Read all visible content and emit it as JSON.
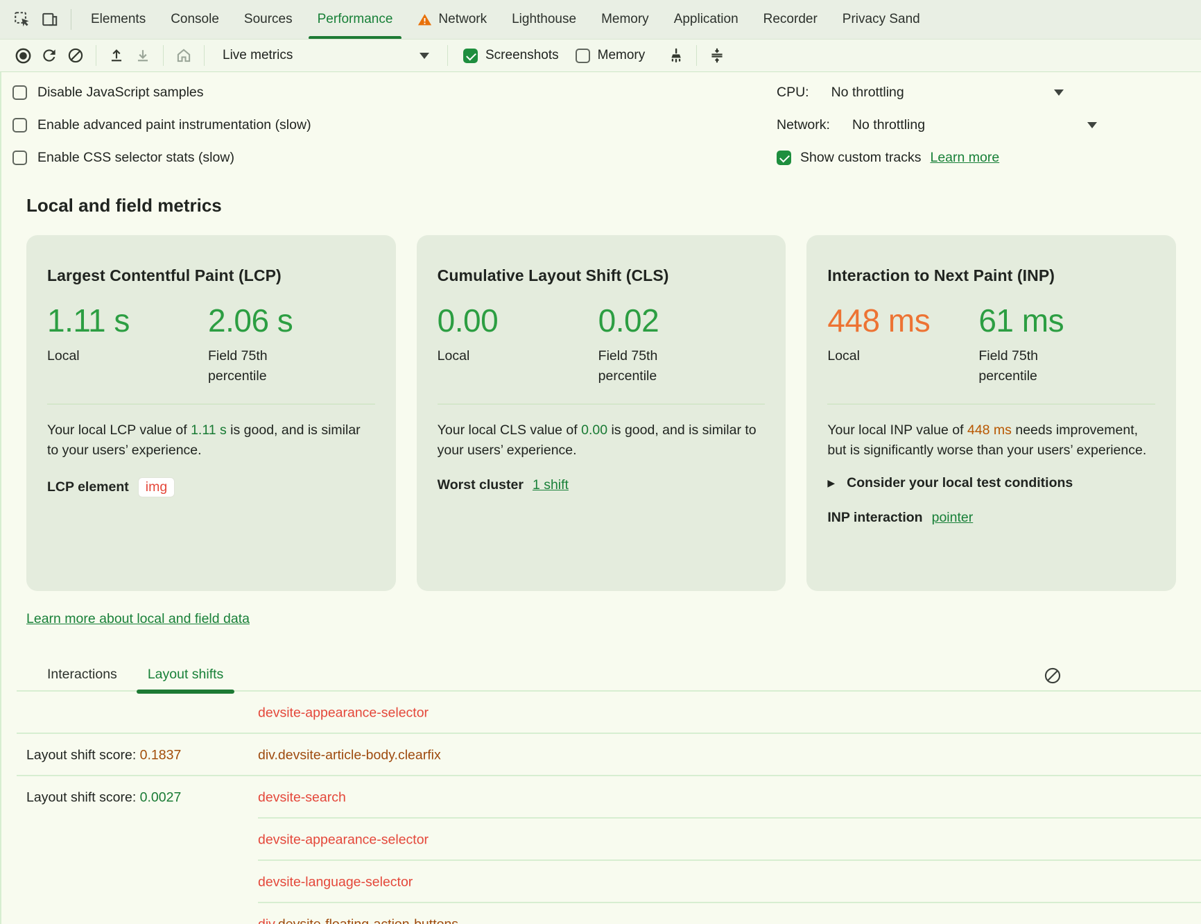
{
  "tabbar": {
    "tabs": [
      {
        "label": "Elements"
      },
      {
        "label": "Console"
      },
      {
        "label": "Sources"
      },
      {
        "label": "Performance",
        "selected": true
      },
      {
        "label": "Network",
        "warning": true
      },
      {
        "label": "Lighthouse"
      },
      {
        "label": "Memory"
      },
      {
        "label": "Application"
      },
      {
        "label": "Recorder"
      },
      {
        "label": "Privacy Sand"
      }
    ],
    "icons": [
      "inspect-icon",
      "device-toolbar-icon",
      "warning-icon"
    ]
  },
  "toolbar": {
    "mode_label": "Live metrics",
    "screenshots_label": "Screenshots",
    "memory_label": "Memory",
    "screenshots_checked": true,
    "memory_checked": false,
    "icons": [
      "record-icon",
      "refresh-icon",
      "clear-icon",
      "upload-icon",
      "download-icon",
      "home-icon",
      "dropdown-arrow-icon",
      "broom-icon",
      "collapse-icon"
    ]
  },
  "settings": {
    "options": [
      "Disable JavaScript samples",
      "Enable advanced paint instrumentation (slow)",
      "Enable CSS selector stats (slow)"
    ],
    "cpu_label": "CPU:",
    "cpu_value": "No throttling",
    "network_label": "Network:",
    "network_value": "No throttling",
    "custom_tracks_label": "Show custom tracks",
    "custom_tracks_link": "Learn more",
    "custom_tracks_checked": true
  },
  "metrics": {
    "section_title": "Local and field metrics",
    "local_label": "Local",
    "field_label": "Field 75th percentile",
    "cards": {
      "lcp": {
        "title": "Largest Contentful Paint (LCP)",
        "local": "1.11 s",
        "field": "2.06 s",
        "desc_before": "Your local LCP value of ",
        "desc_value": "1.11 s",
        "desc_after": " is good, and is similar to your users’ experience.",
        "footer_label": "LCP element",
        "footer_badge": "img"
      },
      "cls": {
        "title": "Cumulative Layout Shift (CLS)",
        "local": "0.00",
        "field": "0.02",
        "desc_before": "Your local CLS value of ",
        "desc_value": "0.00",
        "desc_after": " is good, and is similar to your users’ experience.",
        "footer_label": "Worst cluster",
        "footer_link": "1 shift"
      },
      "inp": {
        "title": "Interaction to Next Paint (INP)",
        "local": "448 ms",
        "field": "61 ms",
        "desc_before": "Your local INP value of ",
        "desc_value": "448 ms",
        "desc_after": " needs improvement, but is significantly worse than your users’ experience.",
        "expander_label": "Consider your local test conditions",
        "footer_label": "INP interaction",
        "footer_link": "pointer"
      }
    },
    "learn_more_link": "Learn more about local and field data"
  },
  "log": {
    "tabs": [
      {
        "label": "Interactions"
      },
      {
        "label": "Layout shifts",
        "selected": true
      }
    ],
    "clear_icon": "clear-icon",
    "rows": [
      {
        "score_label": "",
        "score_value": "",
        "score_tone": "",
        "element_parts": [
          {
            "text": "devsite-appearance-selector",
            "tone": "red"
          }
        ],
        "divider": "full"
      },
      {
        "score_label": "Layout shift score: ",
        "score_value": "0.1837",
        "score_tone": "brown",
        "element_parts": [
          {
            "text": "div.devsite-article-body.clearfix",
            "tone": "brown"
          }
        ],
        "divider": "full"
      },
      {
        "score_label": "Layout shift score: ",
        "score_value": "0.0027",
        "score_tone": "green",
        "element_parts": [
          {
            "text": "devsite-search",
            "tone": "red"
          }
        ],
        "divider": "inset"
      },
      {
        "score_label": "",
        "score_value": "",
        "score_tone": "",
        "element_parts": [
          {
            "text": "devsite-appearance-selector",
            "tone": "red"
          }
        ],
        "divider": "inset"
      },
      {
        "score_label": "",
        "score_value": "",
        "score_tone": "",
        "element_parts": [
          {
            "text": "devsite-language-selector",
            "tone": "red"
          }
        ],
        "divider": "inset"
      },
      {
        "score_label": "",
        "score_value": "",
        "score_tone": "",
        "element_parts": [
          {
            "text": "div",
            "tone": "red"
          },
          {
            "text": ".devsite-floating-action-buttons",
            "tone": "brown"
          }
        ],
        "divider": "none"
      }
    ]
  },
  "colors": {
    "accent_green": "#188038",
    "value_green": "#2c9e42",
    "value_orange": "#ed7333",
    "inline_orange": "#b85700",
    "node_red": "#e4473a",
    "node_brown": "#9e4a0e",
    "card_bg": "#e4ecdd",
    "tabbar_bg": "#e9efe4",
    "toolbar_bg": "#f3f8ec",
    "content_bg": "#f8fbef"
  }
}
